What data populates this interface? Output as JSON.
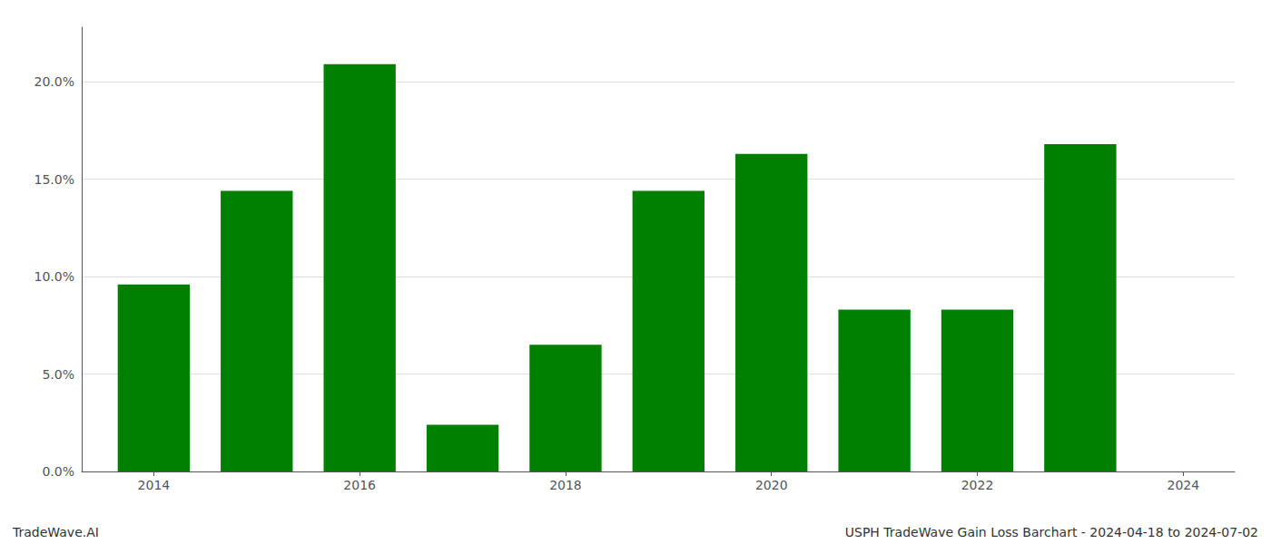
{
  "chart_data": {
    "type": "bar",
    "x": [
      2014,
      2015,
      2016,
      2017,
      2018,
      2019,
      2020,
      2021,
      2022,
      2023
    ],
    "values": [
      0.096,
      0.144,
      0.209,
      0.024,
      0.065,
      0.144,
      0.163,
      0.083,
      0.083,
      0.168
    ],
    "color": "#008000",
    "xlim": [
      2013.3,
      2024.5
    ],
    "xticks": [
      2014,
      2016,
      2018,
      2020,
      2022,
      2024
    ],
    "ylim": [
      0.0,
      0.228
    ],
    "yticks": [
      {
        "value": 0.0,
        "label": "0.0%"
      },
      {
        "value": 0.05,
        "label": "5.0%"
      },
      {
        "value": 0.1,
        "label": "10.0%"
      },
      {
        "value": 0.15,
        "label": "15.0%"
      },
      {
        "value": 0.2,
        "label": "20.0%"
      }
    ],
    "grid": true,
    "annotations": [
      "TradeWave.AI",
      "USPH TradeWave Gain Loss Barchart - 2024-04-18 to 2024-07-02"
    ]
  }
}
